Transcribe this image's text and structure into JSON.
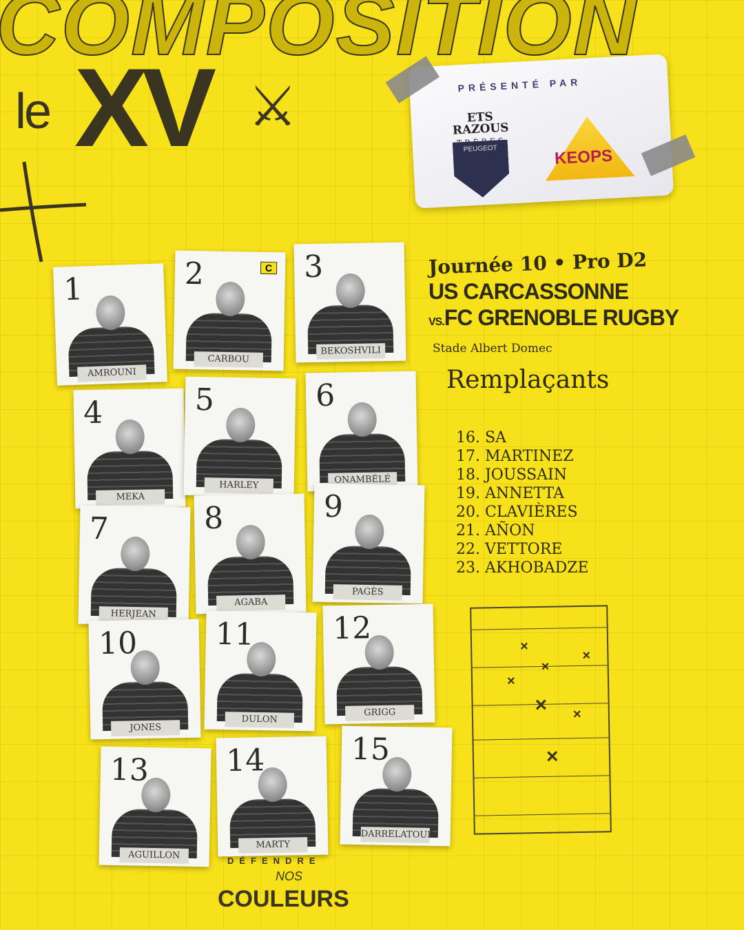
{
  "header": {
    "title": "COMPOSITION",
    "le": "le",
    "xv": "XV",
    "swords_icon": "crossed-swords"
  },
  "sponsor": {
    "presented_by": "PRÉSENTÉ PAR",
    "sponsor1": "ETS RAZOUS",
    "sponsor1_sub": "TRÈBES",
    "sponsor1_brand": "PEUGEOT",
    "sponsor2": "KEOPS"
  },
  "match": {
    "round": "Journée 10 • Pro D2",
    "home": "US CARCASSONNE",
    "vs": "VS.",
    "away": "FC GRENOBLE RUGBY",
    "stadium": "Stade Albert Domec"
  },
  "starters": [
    {
      "number": "1",
      "name": "AMROUNI"
    },
    {
      "number": "2",
      "name": "CARBOU",
      "badge": "C"
    },
    {
      "number": "3",
      "name": "BEKOSHVILI"
    },
    {
      "number": "4",
      "name": "MEKA"
    },
    {
      "number": "5",
      "name": "HARLEY"
    },
    {
      "number": "6",
      "name": "ONAMBÉLÉ"
    },
    {
      "number": "7",
      "name": "HERJEAN"
    },
    {
      "number": "8",
      "name": "AGABA"
    },
    {
      "number": "9",
      "name": "PAGÈS"
    },
    {
      "number": "10",
      "name": "JONES"
    },
    {
      "number": "11",
      "name": "DULON"
    },
    {
      "number": "12",
      "name": "GRIGG"
    },
    {
      "number": "13",
      "name": "AGUILLON"
    },
    {
      "number": "14",
      "name": "MARTY"
    },
    {
      "number": "15",
      "name": "DARRELATOUR"
    }
  ],
  "substitutes": {
    "title": "Remplaçants",
    "items": [
      "16. SA",
      "17. MARTINEZ",
      "18. JOUSSAIN",
      "19. ANNETTA",
      "20. CLAVIÈRES",
      "21. AÑON",
      "22. VETTORE",
      "23. AKHOBADZE"
    ]
  },
  "footer": {
    "defendre": "DÉFENDRE",
    "nos": "NOS",
    "couleurs": "COULEURS"
  },
  "colors": {
    "background": "#f7e11a",
    "ink": "#3a3520"
  }
}
